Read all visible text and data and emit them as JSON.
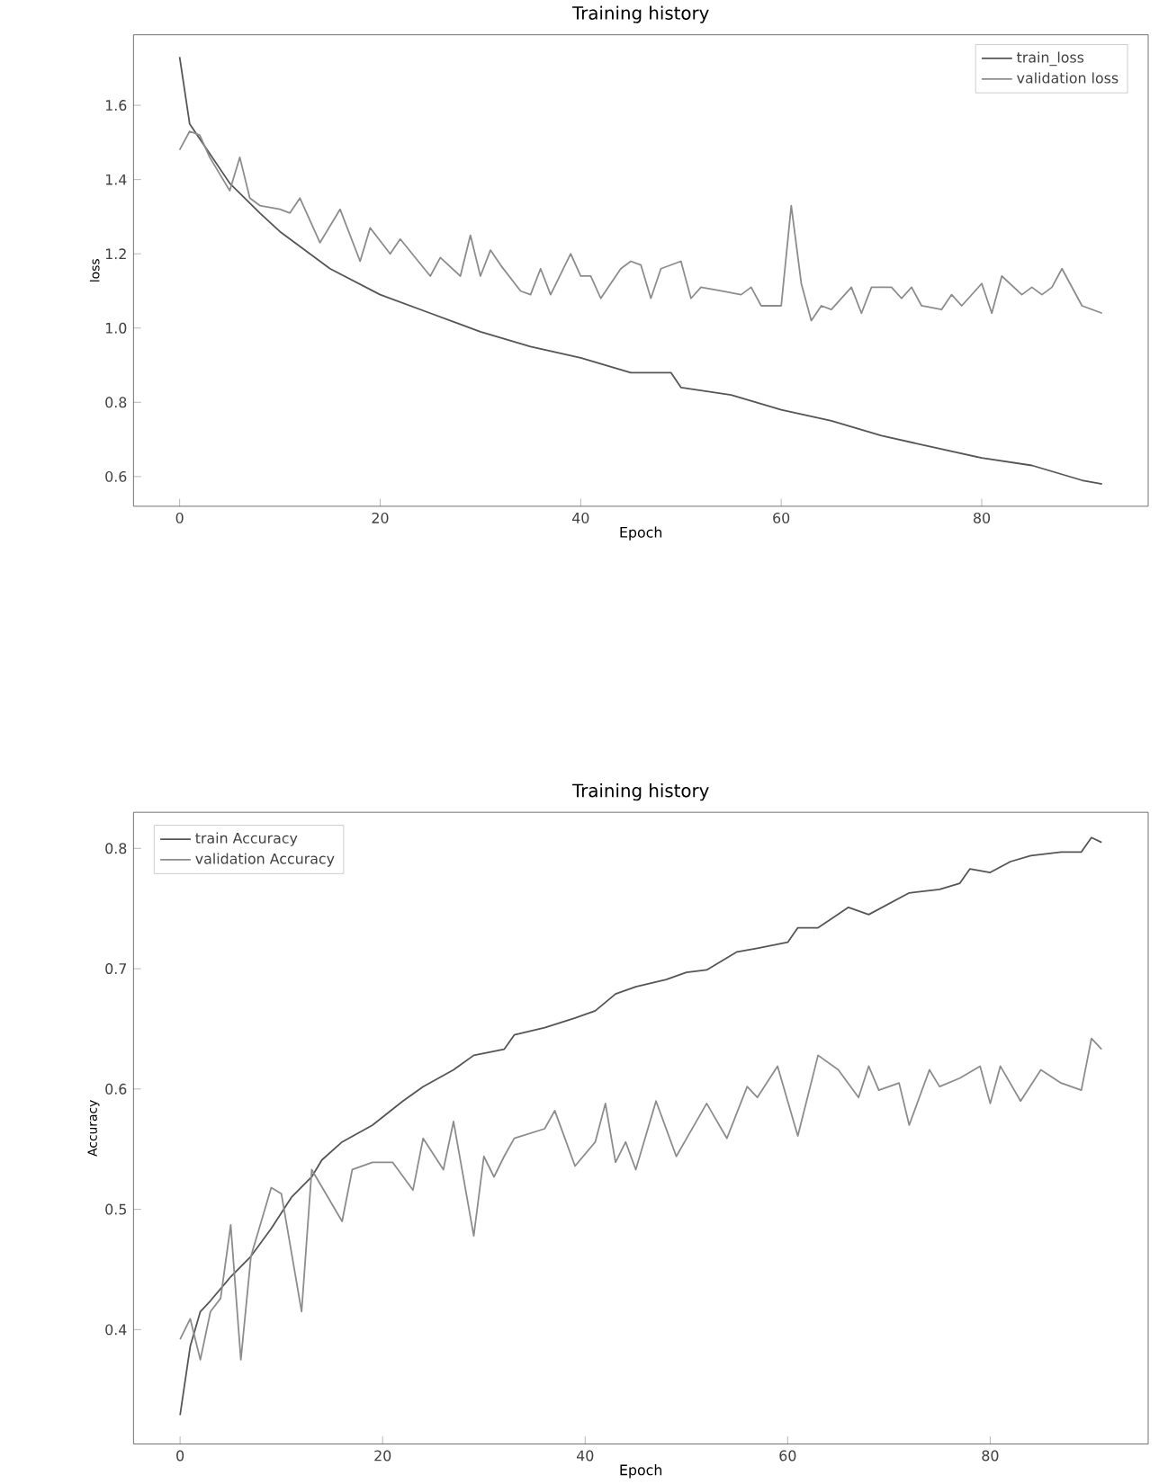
{
  "chart_data": [
    {
      "type": "line",
      "title": "Training history",
      "xlabel": "Epoch",
      "ylabel": "loss",
      "xlim": [
        -4.6,
        96.6
      ],
      "ylim": [
        0.52,
        1.79
      ],
      "xticks": [
        0,
        20,
        40,
        60,
        80
      ],
      "yticks": [
        0.6,
        0.8,
        {
          "value": 1.0,
          "label": "1.0"
        },
        1.2,
        1.4,
        1.6
      ],
      "legend": "top right",
      "series": [
        {
          "name": "train_loss",
          "color": "#555555",
          "x": [
            0,
            1,
            2,
            5,
            8,
            10,
            15,
            20,
            25,
            30,
            35,
            40,
            45,
            49,
            50,
            55,
            60,
            65,
            70,
            75,
            80,
            85,
            90,
            92
          ],
          "values": [
            1.73,
            1.55,
            1.51,
            1.39,
            1.31,
            1.26,
            1.16,
            1.09,
            1.04,
            0.99,
            0.95,
            0.92,
            0.88,
            0.88,
            0.84,
            0.82,
            0.78,
            0.75,
            0.71,
            0.68,
            0.65,
            0.63,
            0.59,
            0.58
          ]
        },
        {
          "name": "validation loss",
          "color": "#8c8c8c",
          "x": [
            0,
            1,
            2,
            3,
            5,
            6,
            7,
            8,
            10,
            11,
            12,
            14,
            16,
            18,
            19,
            21,
            22,
            25,
            26,
            28,
            29,
            30,
            31,
            32,
            34,
            35,
            36,
            37,
            39,
            40,
            41,
            42,
            44,
            45,
            46,
            47,
            48,
            50,
            51,
            52,
            54,
            56,
            57,
            58,
            60,
            61,
            62,
            63,
            64,
            65,
            67,
            68,
            69,
            71,
            72,
            73,
            74,
            76,
            77,
            78,
            80,
            81,
            82,
            84,
            85,
            86,
            87,
            88,
            90,
            92
          ],
          "values": [
            1.48,
            1.53,
            1.52,
            1.46,
            1.37,
            1.46,
            1.35,
            1.33,
            1.32,
            1.31,
            1.35,
            1.23,
            1.32,
            1.18,
            1.27,
            1.2,
            1.24,
            1.14,
            1.19,
            1.14,
            1.25,
            1.14,
            1.21,
            1.17,
            1.1,
            1.09,
            1.16,
            1.09,
            1.2,
            1.14,
            1.14,
            1.08,
            1.16,
            1.18,
            1.17,
            1.08,
            1.16,
            1.18,
            1.08,
            1.11,
            1.1,
            1.09,
            1.11,
            1.06,
            1.06,
            1.33,
            1.12,
            1.02,
            1.06,
            1.05,
            1.11,
            1.04,
            1.11,
            1.11,
            1.08,
            1.11,
            1.06,
            1.05,
            1.09,
            1.06,
            1.12,
            1.04,
            1.14,
            1.09,
            1.11,
            1.09,
            1.11,
            1.16,
            1.06,
            1.04
          ]
        }
      ]
    },
    {
      "type": "line",
      "title": "Training history",
      "xlabel": "Epoch",
      "ylabel": "Accuracy",
      "xlim": [
        -4.6,
        95.6
      ],
      "ylim": [
        0.305,
        0.83
      ],
      "xticks": [
        0,
        20,
        40,
        60,
        80
      ],
      "yticks": [
        0.4,
        0.5,
        0.6,
        0.7,
        0.8
      ],
      "legend": "top left",
      "series": [
        {
          "name": "train Accuracy",
          "color": "#555555",
          "x": [
            0,
            1,
            2,
            3,
            5,
            7,
            9,
            11,
            13,
            14,
            16,
            19,
            22,
            24,
            27,
            29,
            32,
            33,
            36,
            39,
            41,
            43,
            45,
            48,
            50,
            52,
            55,
            57,
            60,
            61,
            63,
            66,
            68,
            70,
            72,
            75,
            77,
            78,
            80,
            82,
            84,
            87,
            89,
            90,
            91
          ],
          "values": [
            0.329,
            0.386,
            0.415,
            0.424,
            0.444,
            0.461,
            0.484,
            0.51,
            0.527,
            0.541,
            0.556,
            0.57,
            0.59,
            0.602,
            0.616,
            0.628,
            0.633,
            0.645,
            0.651,
            0.659,
            0.665,
            0.679,
            0.685,
            0.691,
            0.697,
            0.699,
            0.714,
            0.717,
            0.722,
            0.734,
            0.734,
            0.751,
            0.745,
            0.754,
            0.763,
            0.766,
            0.771,
            0.783,
            0.78,
            0.789,
            0.794,
            0.797,
            0.797,
            0.809,
            0.805
          ]
        },
        {
          "name": "validation Accuracy",
          "color": "#8c8c8c",
          "x": [
            0,
            1,
            2,
            3,
            4,
            5,
            6,
            7,
            9,
            10,
            12,
            13,
            16,
            17,
            19,
            21,
            23,
            24,
            26,
            27,
            29,
            30,
            31,
            32,
            33,
            36,
            37,
            39,
            41,
            42,
            43,
            44,
            45,
            47,
            49,
            52,
            54,
            56,
            57,
            59,
            61,
            63,
            65,
            67,
            68,
            69,
            71,
            72,
            74,
            75,
            77,
            79,
            80,
            81,
            83,
            85,
            87,
            89,
            90,
            91
          ],
          "values": [
            0.392,
            0.409,
            0.375,
            0.415,
            0.426,
            0.487,
            0.375,
            0.461,
            0.518,
            0.513,
            0.415,
            0.533,
            0.49,
            0.533,
            0.539,
            0.539,
            0.516,
            0.559,
            0.533,
            0.573,
            0.478,
            0.544,
            0.527,
            0.544,
            0.559,
            0.567,
            0.582,
            0.536,
            0.556,
            0.588,
            0.539,
            0.556,
            0.533,
            0.59,
            0.544,
            0.588,
            0.559,
            0.602,
            0.593,
            0.619,
            0.561,
            0.628,
            0.616,
            0.593,
            0.619,
            0.599,
            0.605,
            0.57,
            0.616,
            0.602,
            0.609,
            0.619,
            0.588,
            0.619,
            0.59,
            0.616,
            0.605,
            0.599,
            0.642,
            0.633
          ]
        }
      ]
    }
  ]
}
